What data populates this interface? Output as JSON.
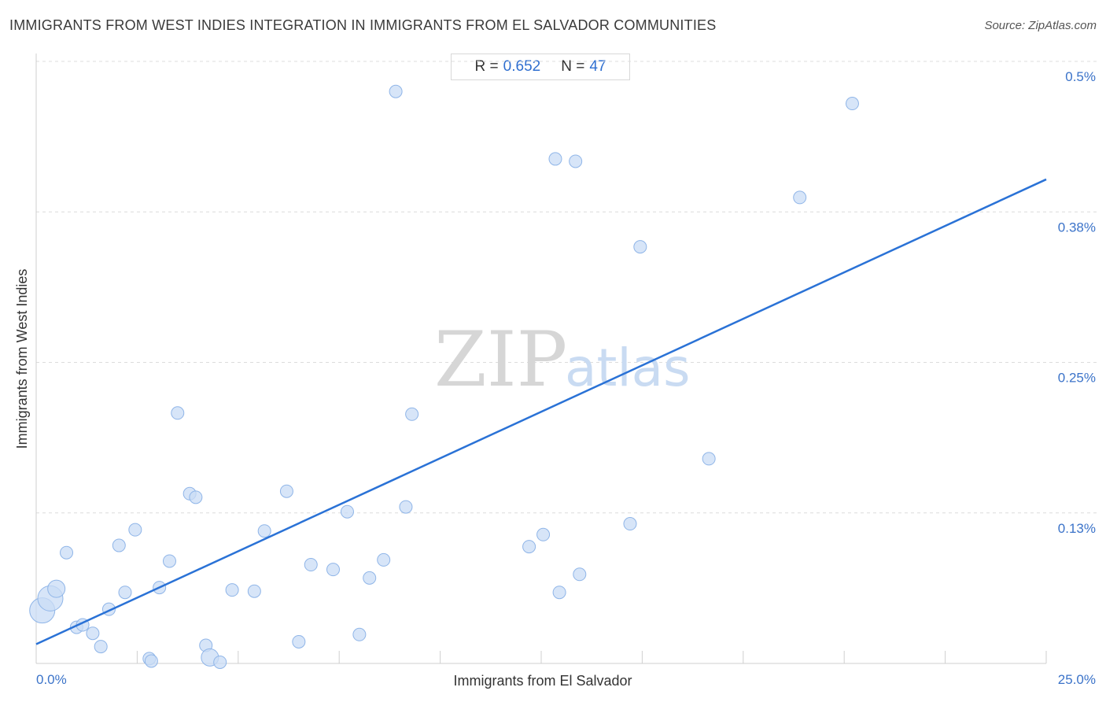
{
  "header": {
    "title": "IMMIGRANTS FROM WEST INDIES INTEGRATION IN IMMIGRANTS FROM EL SALVADOR COMMUNITIES",
    "source": "Source: ZipAtlas.com"
  },
  "stats": {
    "r_label": "R =",
    "r_value": "0.652",
    "n_label": "N =",
    "n_value": "47"
  },
  "watermark": {
    "zip": "ZIP",
    "atlas": "atlas"
  },
  "colors": {
    "point_fill": "#c9dcf6",
    "point_stroke": "#8fb5e8",
    "trend": "#2a72d6",
    "tick_text": "#3b73c9"
  },
  "chart_data": {
    "type": "scatter",
    "title": "IMMIGRANTS FROM WEST INDIES INTEGRATION IN IMMIGRANTS FROM EL SALVADOR COMMUNITIES",
    "xlabel": "Immigrants from El Salvador",
    "ylabel": "Immigrants from West Indies",
    "xlim": [
      0,
      25
    ],
    "ylim": [
      0,
      0.5
    ],
    "x_tick_labels": [
      "0.0%",
      "25.0%"
    ],
    "y_ticks": [
      0.125,
      0.25,
      0.375,
      0.5
    ],
    "y_tick_labels": [
      "0.13%",
      "0.25%",
      "0.38%",
      "0.5%"
    ],
    "grid": true,
    "trend_line": {
      "x": [
        0,
        25
      ],
      "y": [
        0.016,
        0.402
      ]
    },
    "points": [
      {
        "x": 0.15,
        "y": 0.044,
        "size": "large"
      },
      {
        "x": 0.35,
        "y": 0.054,
        "size": "large"
      },
      {
        "x": 0.5,
        "y": 0.062,
        "size": "medium"
      },
      {
        "x": 0.75,
        "y": 0.092,
        "size": "small"
      },
      {
        "x": 1.0,
        "y": 0.03,
        "size": "small"
      },
      {
        "x": 1.15,
        "y": 0.032,
        "size": "small"
      },
      {
        "x": 1.4,
        "y": 0.025,
        "size": "small"
      },
      {
        "x": 1.6,
        "y": 0.014,
        "size": "small"
      },
      {
        "x": 1.8,
        "y": 0.045,
        "size": "small"
      },
      {
        "x": 2.05,
        "y": 0.098,
        "size": "small"
      },
      {
        "x": 2.2,
        "y": 0.059,
        "size": "small"
      },
      {
        "x": 2.45,
        "y": 0.111,
        "size": "small"
      },
      {
        "x": 2.8,
        "y": 0.004,
        "size": "small"
      },
      {
        "x": 2.85,
        "y": 0.002,
        "size": "small"
      },
      {
        "x": 3.05,
        "y": 0.063,
        "size": "small"
      },
      {
        "x": 3.3,
        "y": 0.085,
        "size": "small"
      },
      {
        "x": 3.5,
        "y": 0.208,
        "size": "small"
      },
      {
        "x": 3.8,
        "y": 0.141,
        "size": "small"
      },
      {
        "x": 3.95,
        "y": 0.138,
        "size": "small"
      },
      {
        "x": 4.2,
        "y": 0.015,
        "size": "small"
      },
      {
        "x": 4.3,
        "y": 0.005,
        "size": "medium"
      },
      {
        "x": 4.55,
        "y": 0.001,
        "size": "small"
      },
      {
        "x": 4.85,
        "y": 0.061,
        "size": "small"
      },
      {
        "x": 5.4,
        "y": 0.06,
        "size": "small"
      },
      {
        "x": 5.65,
        "y": 0.11,
        "size": "small"
      },
      {
        "x": 6.2,
        "y": 0.143,
        "size": "small"
      },
      {
        "x": 6.5,
        "y": 0.018,
        "size": "small"
      },
      {
        "x": 6.8,
        "y": 0.082,
        "size": "small"
      },
      {
        "x": 7.35,
        "y": 0.078,
        "size": "small"
      },
      {
        "x": 7.7,
        "y": 0.126,
        "size": "small"
      },
      {
        "x": 8.0,
        "y": 0.024,
        "size": "small"
      },
      {
        "x": 8.25,
        "y": 0.071,
        "size": "small"
      },
      {
        "x": 8.6,
        "y": 0.086,
        "size": "small"
      },
      {
        "x": 8.9,
        "y": 0.475,
        "size": "small"
      },
      {
        "x": 9.15,
        "y": 0.13,
        "size": "small"
      },
      {
        "x": 9.3,
        "y": 0.207,
        "size": "small"
      },
      {
        "x": 12.2,
        "y": 0.097,
        "size": "small"
      },
      {
        "x": 12.55,
        "y": 0.107,
        "size": "small"
      },
      {
        "x": 12.95,
        "y": 0.059,
        "size": "small"
      },
      {
        "x": 12.85,
        "y": 0.419,
        "size": "small"
      },
      {
        "x": 13.35,
        "y": 0.417,
        "size": "small"
      },
      {
        "x": 13.45,
        "y": 0.074,
        "size": "small"
      },
      {
        "x": 14.7,
        "y": 0.116,
        "size": "small"
      },
      {
        "x": 14.95,
        "y": 0.346,
        "size": "small"
      },
      {
        "x": 16.65,
        "y": 0.17,
        "size": "small"
      },
      {
        "x": 18.9,
        "y": 0.387,
        "size": "small"
      },
      {
        "x": 20.2,
        "y": 0.465,
        "size": "small"
      }
    ]
  }
}
